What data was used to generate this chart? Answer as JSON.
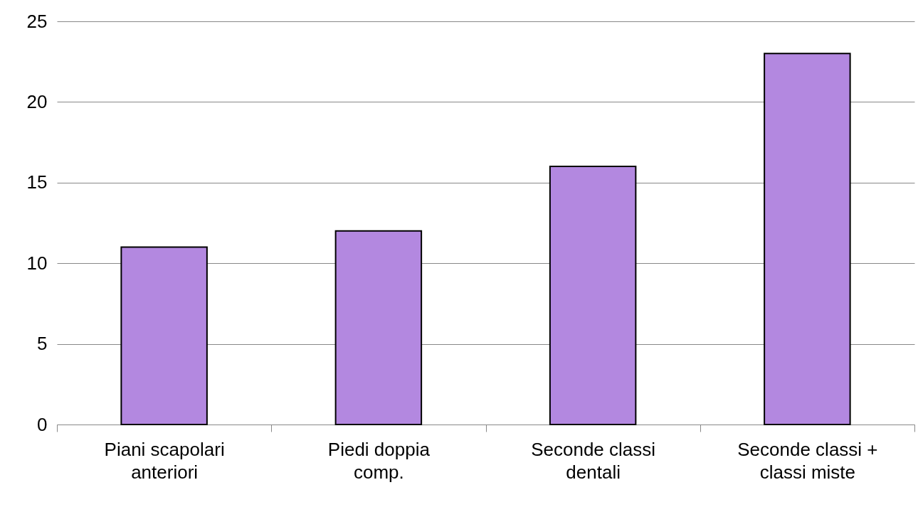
{
  "chart_data": {
    "type": "bar",
    "categories": [
      "Piani scapolari\nanteriori",
      "Piedi doppia\ncomp.",
      "Seconde classi\ndentali",
      "Seconde classi +\nclassi miste"
    ],
    "values": [
      11,
      12,
      16,
      23
    ],
    "color": "#b388e0",
    "ylim": [
      0,
      25
    ],
    "yticks": [
      0,
      5,
      10,
      15,
      20,
      25
    ],
    "grid": "y"
  }
}
